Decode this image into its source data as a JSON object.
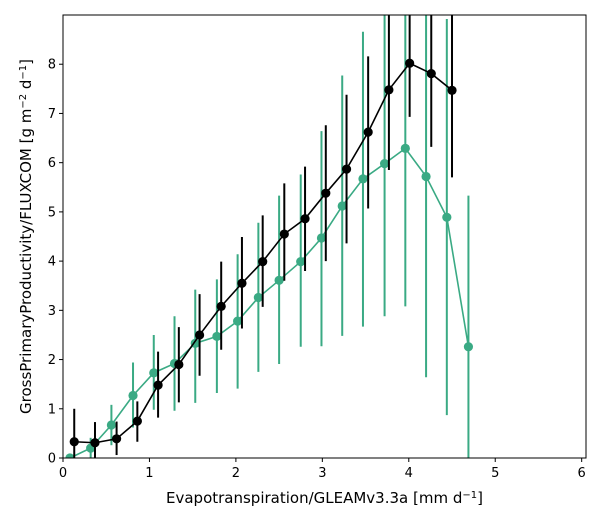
{
  "chart_data": {
    "type": "line",
    "xlabel": "Evapotranspiration/GLEAMv3.3a [mm d",
    "xlabel_sup": "−1",
    "xlabel_end": "]",
    "ylabel": "GrossPrimaryProductivity/FLUXCOM [g m",
    "ylabel_sup1": "−2",
    "ylabel_mid": " d",
    "ylabel_sup2": "−1",
    "ylabel_end": "]",
    "xlim": [
      0,
      6.05
    ],
    "ylim": [
      0,
      9.0
    ],
    "xticks": [
      "0",
      "1",
      "2",
      "3",
      "4",
      "5",
      "6"
    ],
    "yticks": [
      "0",
      "1",
      "2",
      "3",
      "4",
      "5",
      "6",
      "7",
      "8"
    ],
    "series": [
      {
        "color": "#000000",
        "x": [
          0.13,
          0.37,
          0.62,
          0.86,
          1.1,
          1.34,
          1.58,
          1.83,
          2.07,
          2.31,
          2.56,
          2.8,
          3.04,
          3.28,
          3.53,
          3.77,
          4.01,
          4.26,
          4.5
        ],
        "y": [
          0.33,
          0.31,
          0.39,
          0.75,
          1.48,
          1.9,
          2.5,
          3.08,
          3.55,
          3.99,
          4.55,
          4.86,
          5.38,
          5.87,
          6.62,
          7.48,
          8.02,
          7.81,
          7.47
        ],
        "err_low": [
          0.0,
          0.0,
          0.06,
          0.33,
          0.82,
          1.13,
          1.67,
          2.2,
          2.63,
          3.07,
          3.6,
          3.8,
          4.0,
          4.36,
          5.07,
          5.85,
          6.93,
          6.32,
          5.7
        ],
        "err_high": [
          1.0,
          0.73,
          0.74,
          1.15,
          2.16,
          2.66,
          3.33,
          3.99,
          4.49,
          4.93,
          5.58,
          5.92,
          6.76,
          7.38,
          8.16,
          9.0,
          9.0,
          9.0,
          9.0
        ]
      },
      {
        "color": "#3aaa84",
        "x": [
          0.08,
          0.32,
          0.56,
          0.81,
          1.05,
          1.29,
          1.53,
          1.78,
          2.02,
          2.26,
          2.5,
          2.75,
          2.99,
          3.23,
          3.47,
          3.72,
          3.96,
          4.2,
          4.44,
          4.69
        ],
        "y": [
          0.0,
          0.2,
          0.67,
          1.27,
          1.73,
          1.92,
          2.33,
          2.47,
          2.78,
          3.26,
          3.61,
          3.99,
          4.47,
          5.12,
          5.67,
          5.98,
          6.29,
          5.72,
          4.89,
          2.26
        ],
        "err_low": [
          0.0,
          0.0,
          0.26,
          0.62,
          0.98,
          0.96,
          1.12,
          1.32,
          1.41,
          1.75,
          1.91,
          2.26,
          2.27,
          2.48,
          2.67,
          2.88,
          3.08,
          1.64,
          0.87,
          0.0
        ],
        "err_high": [
          0.0,
          0.41,
          1.08,
          1.94,
          2.5,
          2.88,
          3.42,
          3.63,
          4.14,
          4.78,
          5.33,
          5.76,
          6.64,
          7.77,
          8.66,
          9.0,
          9.0,
          9.0,
          8.92,
          5.33
        ]
      }
    ]
  }
}
